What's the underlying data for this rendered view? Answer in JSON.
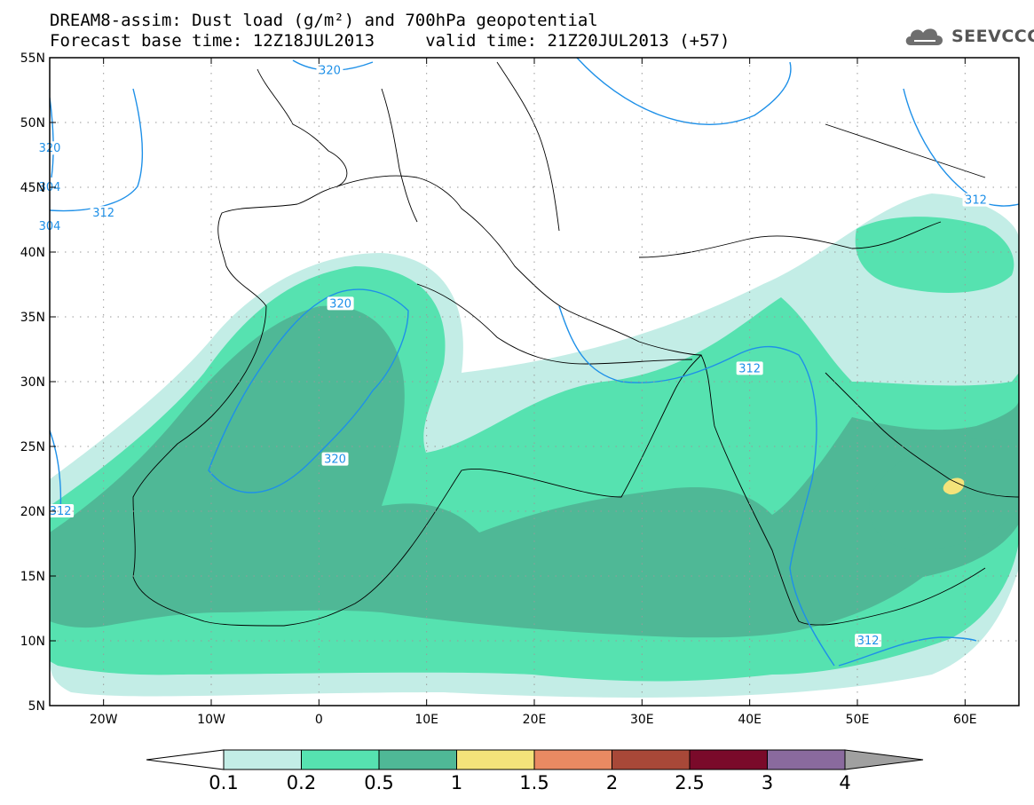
{
  "title": {
    "line1": "DREAM8-assim: Dust load (g/m²) and 700hPa geopotential",
    "line2": "Forecast base time: 12Z18JUL2013     valid time: 21Z20JUL2013 (+57)"
  },
  "logo": {
    "text": "SEEVCCC",
    "icon": "cloud-icon"
  },
  "map": {
    "lon_range": [
      -25,
      65
    ],
    "lat_range": [
      5,
      55
    ],
    "lat_labels": [
      "55N",
      "50N",
      "45N",
      "40N",
      "35N",
      "30N",
      "25N",
      "20N",
      "15N",
      "10N",
      "5N"
    ],
    "lon_labels": [
      "20W",
      "10W",
      "0",
      "10E",
      "20E",
      "30E",
      "40E",
      "50E",
      "60E"
    ],
    "contour_labels": [
      "320",
      "304",
      "304",
      "312",
      "320",
      "320",
      "312",
      "320",
      "312",
      "312",
      "312"
    ],
    "dust_colors": {
      "0.1": "#c3ede6",
      "0.2": "#56e2b0",
      "0.5": "#4fb896",
      "1": "#f4e37a"
    },
    "geopotential_color": "#1e90e8"
  },
  "legend": {
    "labels": [
      "0.1",
      "0.2",
      "0.5",
      "1",
      "1.5",
      "2",
      "2.5",
      "3",
      "4"
    ],
    "colors": [
      "#ffffff",
      "#c3ede6",
      "#56e2b0",
      "#4fb896",
      "#f4e37a",
      "#e98a62",
      "#a84838",
      "#7a0a2a",
      "#8a6a9e",
      "#a0a0a0"
    ]
  }
}
